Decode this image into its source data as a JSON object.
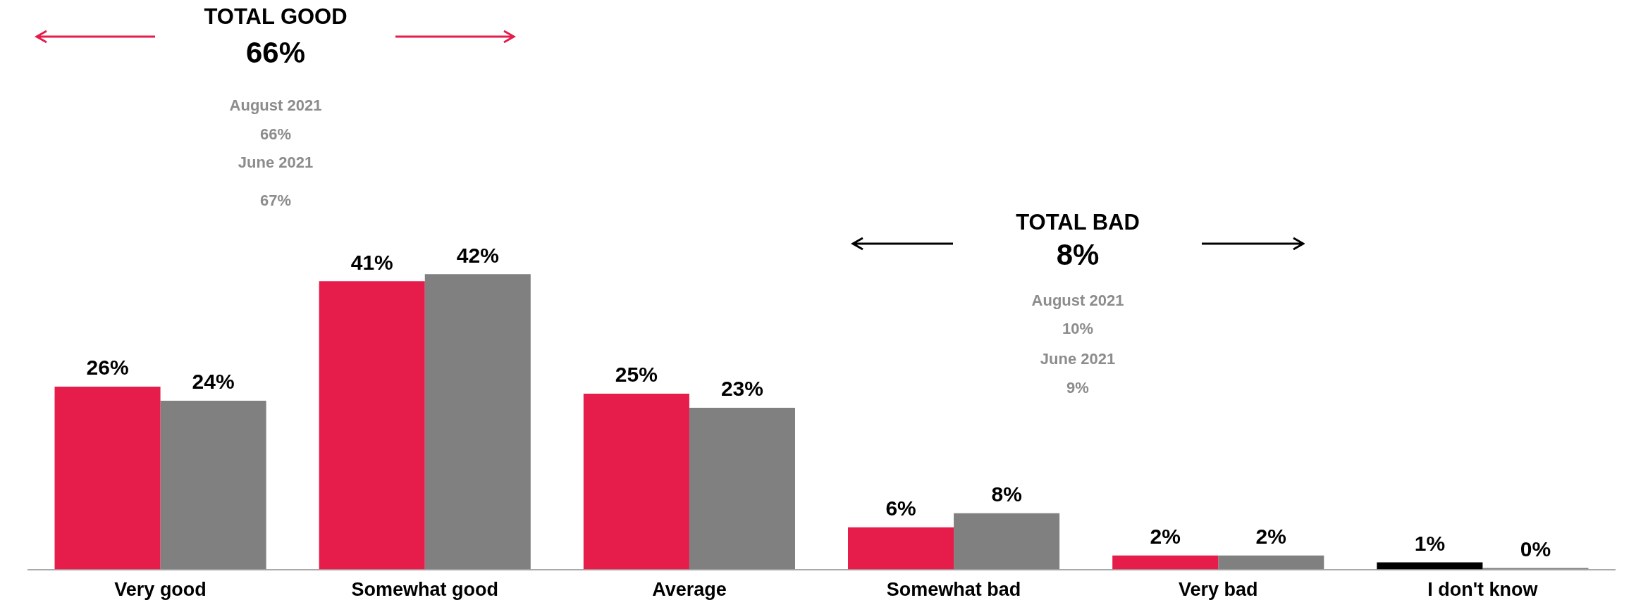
{
  "chart_data": {
    "type": "bar",
    "categories": [
      "Very good",
      "Somewhat good",
      "Average",
      "Somewhat bad",
      "Very bad",
      "I don't know"
    ],
    "series": [
      {
        "colors": [
          "#e61c4a",
          "#e61c4a",
          "#e61c4a",
          "#e61c4a",
          "#e61c4a",
          "#000000"
        ],
        "values": [
          26,
          41,
          25,
          6,
          2,
          1
        ],
        "value_labels": [
          "26%",
          "41%",
          "25%",
          "6%",
          "2%",
          "1%"
        ]
      },
      {
        "color": "#808080",
        "values": [
          24,
          42,
          23,
          8,
          2,
          0
        ],
        "value_labels": [
          "24%",
          "42%",
          "23%",
          "8%",
          "2%",
          "0%"
        ]
      }
    ],
    "grid": false,
    "legend": false,
    "tick_labels": "x",
    "annotations": [
      "TOTAL GOOD",
      "66%",
      "August 2021",
      "66%",
      "June 2021",
      "67%",
      "TOTAL BAD",
      "8%",
      "August 2021",
      "10%",
      "June 2021",
      "9%"
    ]
  }
}
